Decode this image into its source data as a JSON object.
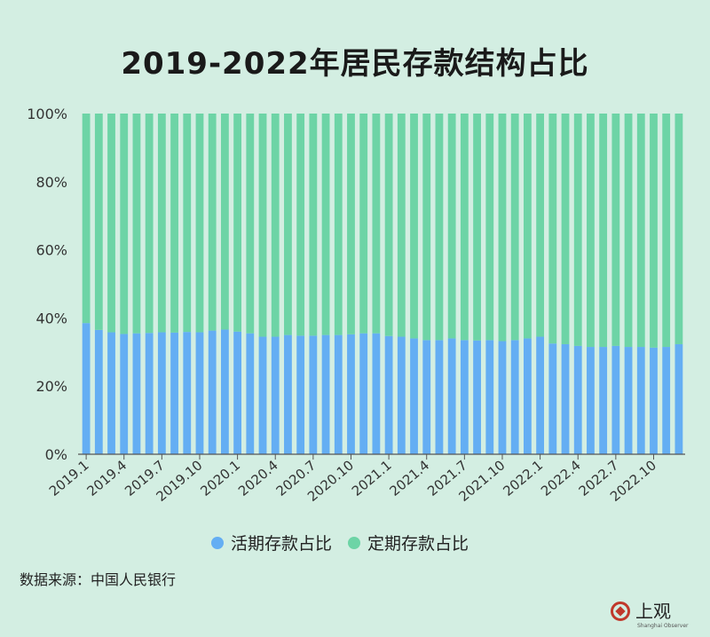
{
  "title": "2019-2022年居民存款结构占比",
  "legend": [
    {
      "label": "活期存款占比",
      "color": "#64aef3"
    },
    {
      "label": "定期存款占比",
      "color": "#6dd4a6"
    }
  ],
  "source": "数据来源：中国人民银行",
  "brand": {
    "name": "上观",
    "subtitle": "Shanghai Observer"
  },
  "colors": {
    "background": "#d3eee2",
    "demand": "#64aef3",
    "time": "#6dd4a6",
    "axis": "#555555"
  },
  "chart_data": {
    "type": "bar",
    "stacked": true,
    "title": "2019-2022年居民存款结构占比",
    "categories": [
      "2019.1",
      "2019.2",
      "2019.3",
      "2019.4",
      "2019.5",
      "2019.6",
      "2019.7",
      "2019.8",
      "2019.9",
      "2019.10",
      "2019.11",
      "2019.12",
      "2020.1",
      "2020.2",
      "2020.3",
      "2020.4",
      "2020.5",
      "2020.6",
      "2020.7",
      "2020.8",
      "2020.9",
      "2020.10",
      "2020.11",
      "2020.12",
      "2021.1",
      "2021.2",
      "2021.3",
      "2021.4",
      "2021.5",
      "2021.6",
      "2021.7",
      "2021.8",
      "2021.9",
      "2021.10",
      "2021.11",
      "2021.12",
      "2022.1",
      "2022.2",
      "2022.3",
      "2022.4",
      "2022.5",
      "2022.6",
      "2022.7",
      "2022.8",
      "2022.9",
      "2022.10",
      "2022.11",
      "2022.12"
    ],
    "tick_labels": [
      "2019.1",
      "2019.4",
      "2019.7",
      "2019.10",
      "2020.1",
      "2020.4",
      "2020.7",
      "2020.10",
      "2021.1",
      "2021.4",
      "2021.7",
      "2021.10",
      "2022.1",
      "2022.4",
      "2022.7",
      "2022.10"
    ],
    "series": [
      {
        "name": "活期存款占比",
        "values": [
          38.5,
          36.5,
          35.8,
          35.3,
          35.5,
          35.6,
          35.8,
          35.7,
          35.9,
          35.8,
          36.3,
          36.6,
          36.0,
          35.5,
          34.5,
          34.5,
          35.0,
          34.8,
          34.8,
          35.0,
          35.0,
          35.2,
          35.5,
          35.5,
          34.7,
          34.5,
          34.0,
          33.5,
          33.5,
          34.0,
          33.5,
          33.4,
          33.5,
          33.2,
          33.5,
          34.0,
          34.5,
          32.5,
          32.3,
          31.8,
          31.5,
          31.5,
          31.8,
          31.5,
          31.5,
          31.3,
          31.5,
          32.3
        ]
      },
      {
        "name": "定期存款占比",
        "values": [
          61.5,
          63.5,
          64.2,
          64.7,
          64.5,
          64.4,
          64.2,
          64.3,
          64.1,
          64.2,
          63.7,
          63.4,
          64.0,
          64.5,
          65.5,
          65.5,
          65.0,
          65.2,
          65.2,
          65.0,
          65.0,
          64.8,
          64.5,
          64.5,
          65.3,
          65.5,
          66.0,
          66.5,
          66.5,
          66.0,
          66.5,
          66.6,
          66.5,
          66.8,
          66.5,
          66.0,
          65.5,
          67.5,
          67.7,
          68.2,
          68.5,
          68.5,
          68.2,
          68.5,
          68.5,
          68.7,
          68.5,
          67.7
        ]
      }
    ],
    "y_ticks": [
      "0%",
      "20%",
      "40%",
      "60%",
      "80%",
      "100%"
    ],
    "ylim": [
      0,
      100
    ],
    "xlabel": "",
    "ylabel": "",
    "grid": false,
    "legend_position": "bottom"
  }
}
